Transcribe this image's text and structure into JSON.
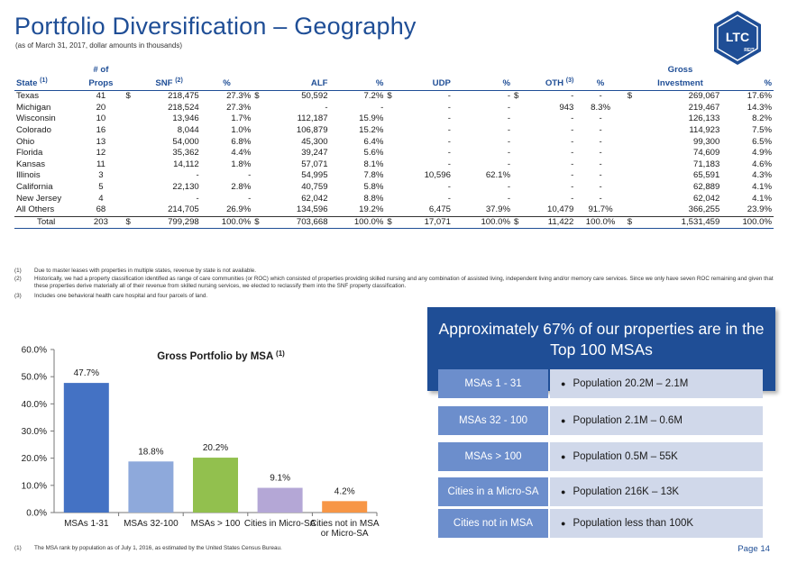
{
  "header": {
    "title": "Portfolio Diversification – Geography",
    "subtitle": "(as of March 31, 2017, dollar amounts in thousands)",
    "logo_text": "LTC",
    "logo_subtext": "REIT"
  },
  "table": {
    "col_state": "State",
    "col_state_note": "(1)",
    "col_props_top": "# of",
    "col_props": "Props",
    "col_snf": "SNF",
    "col_snf_note": "(2)",
    "col_pct": "%",
    "col_alf": "ALF",
    "col_udp": "UDP",
    "col_oth": "OTH",
    "col_oth_note": "(3)",
    "col_gross_top": "Gross",
    "col_gross": "Investment",
    "dollar": "$",
    "rows": [
      {
        "state": "Texas",
        "props": "41",
        "snf": "218,475",
        "snf_pct": "27.3%",
        "alf": "50,592",
        "alf_pct": "7.2%",
        "udp": "-",
        "udp_pct": "-",
        "oth": "-",
        "oth_pct": "-",
        "gross": "269,067",
        "gross_pct": "17.6%"
      },
      {
        "state": "Michigan",
        "props": "20",
        "snf": "218,524",
        "snf_pct": "27.3%",
        "alf": "-",
        "alf_pct": "-",
        "udp": "-",
        "udp_pct": "-",
        "oth": "943",
        "oth_pct": "8.3%",
        "gross": "219,467",
        "gross_pct": "14.3%"
      },
      {
        "state": "Wisconsin",
        "props": "10",
        "snf": "13,946",
        "snf_pct": "1.7%",
        "alf": "112,187",
        "alf_pct": "15.9%",
        "udp": "-",
        "udp_pct": "-",
        "oth": "-",
        "oth_pct": "-",
        "gross": "126,133",
        "gross_pct": "8.2%"
      },
      {
        "state": "Colorado",
        "props": "16",
        "snf": "8,044",
        "snf_pct": "1.0%",
        "alf": "106,879",
        "alf_pct": "15.2%",
        "udp": "-",
        "udp_pct": "-",
        "oth": "-",
        "oth_pct": "-",
        "gross": "114,923",
        "gross_pct": "7.5%"
      },
      {
        "state": "Ohio",
        "props": "13",
        "snf": "54,000",
        "snf_pct": "6.8%",
        "alf": "45,300",
        "alf_pct": "6.4%",
        "udp": "-",
        "udp_pct": "-",
        "oth": "-",
        "oth_pct": "-",
        "gross": "99,300",
        "gross_pct": "6.5%"
      },
      {
        "state": "Florida",
        "props": "12",
        "snf": "35,362",
        "snf_pct": "4.4%",
        "alf": "39,247",
        "alf_pct": "5.6%",
        "udp": "-",
        "udp_pct": "-",
        "oth": "-",
        "oth_pct": "-",
        "gross": "74,609",
        "gross_pct": "4.9%"
      },
      {
        "state": "Kansas",
        "props": "11",
        "snf": "14,112",
        "snf_pct": "1.8%",
        "alf": "57,071",
        "alf_pct": "8.1%",
        "udp": "-",
        "udp_pct": "-",
        "oth": "-",
        "oth_pct": "-",
        "gross": "71,183",
        "gross_pct": "4.6%"
      },
      {
        "state": "Illinois",
        "props": "3",
        "snf": "-",
        "snf_pct": "-",
        "alf": "54,995",
        "alf_pct": "7.8%",
        "udp": "10,596",
        "udp_pct": "62.1%",
        "oth": "-",
        "oth_pct": "-",
        "gross": "65,591",
        "gross_pct": "4.3%"
      },
      {
        "state": "California",
        "props": "5",
        "snf": "22,130",
        "snf_pct": "2.8%",
        "alf": "40,759",
        "alf_pct": "5.8%",
        "udp": "-",
        "udp_pct": "-",
        "oth": "-",
        "oth_pct": "-",
        "gross": "62,889",
        "gross_pct": "4.1%"
      },
      {
        "state": "New Jersey",
        "props": "4",
        "snf": "-",
        "snf_pct": "-",
        "alf": "62,042",
        "alf_pct": "8.8%",
        "udp": "-",
        "udp_pct": "-",
        "oth": "-",
        "oth_pct": "-",
        "gross": "62,042",
        "gross_pct": "4.1%"
      },
      {
        "state": "All Others",
        "props": "68",
        "snf": "214,705",
        "snf_pct": "26.9%",
        "alf": "134,596",
        "alf_pct": "19.2%",
        "udp": "6,475",
        "udp_pct": "37.9%",
        "oth": "10,479",
        "oth_pct": "91.7%",
        "gross": "366,255",
        "gross_pct": "23.9%"
      }
    ],
    "total": {
      "state": "Total",
      "props": "203",
      "snf": "799,298",
      "snf_pct": "100.0%",
      "alf": "703,668",
      "alf_pct": "100.0%",
      "udp": "17,071",
      "udp_pct": "100.0%",
      "oth": "11,422",
      "oth_pct": "100.0%",
      "gross": "1,531,459",
      "gross_pct": "100.0%"
    }
  },
  "footnotes": [
    {
      "num": "(1)",
      "text": "Due to master leases with properties in multiple states, revenue by state is not available."
    },
    {
      "num": "(2)",
      "text": "Historically, we had a property classification identified as range of care communities (or ROC) which consisted of properties providing skilled nursing and any combination of assisted living, independent living and/or memory care services. Since we only have seven ROC remaining and given that these properties derive materially all of their revenue from skilled nursing services, we elected to reclassify them into the SNF property classification."
    },
    {
      "num": "(3)",
      "text": "Includes one behavioral health care hospital and four parcels of land."
    }
  ],
  "chart_data": {
    "type": "bar",
    "title": "Gross Portfolio by MSA",
    "title_note": "(1)",
    "categories": [
      "MSAs 1-31",
      "MSAs 32-100",
      "MSAs > 100",
      "Cities in Micro-SA",
      "Cities not in MSA or Micro-SA"
    ],
    "values": [
      47.7,
      18.8,
      20.2,
      9.1,
      4.2
    ],
    "value_labels": [
      "47.7%",
      "18.8%",
      "20.2%",
      "9.1%",
      "4.2%"
    ],
    "colors": [
      "#4472c4",
      "#8ea9db",
      "#92c04e",
      "#b4a7d6",
      "#f79646"
    ],
    "ylim": [
      0,
      60
    ],
    "yticks": [
      "0.0%",
      "10.0%",
      "20.0%",
      "30.0%",
      "40.0%",
      "50.0%",
      "60.0%"
    ],
    "grid": false,
    "xlabel": "",
    "ylabel": ""
  },
  "chart_footnote": {
    "num": "(1)",
    "text": "The MSA rank by population as of July 1, 2016, as estimated by the United States Census Bureau."
  },
  "msa_panel": {
    "banner": "Approximately 67% of our properties are in the Top 100 MSAs",
    "rows": [
      {
        "label": "MSAs 1 - 31",
        "desc": "Population 20.2M – 2.1M"
      },
      {
        "label": "MSAs 32 - 100",
        "desc": "Population 2.1M – 0.6M"
      },
      {
        "label": "MSAs > 100",
        "desc": "Population 0.5M – 55K"
      },
      {
        "label": "Cities in a Micro-SA",
        "desc": "Population 216K – 13K"
      },
      {
        "label": "Cities not in MSA",
        "desc": "Population less than 100K"
      }
    ]
  },
  "page_number": "Page 14",
  "colors": {
    "brand_blue": "#1f4e96",
    "label_blue": "#6c8ecc",
    "desc_bg": "#d0d8ea"
  }
}
